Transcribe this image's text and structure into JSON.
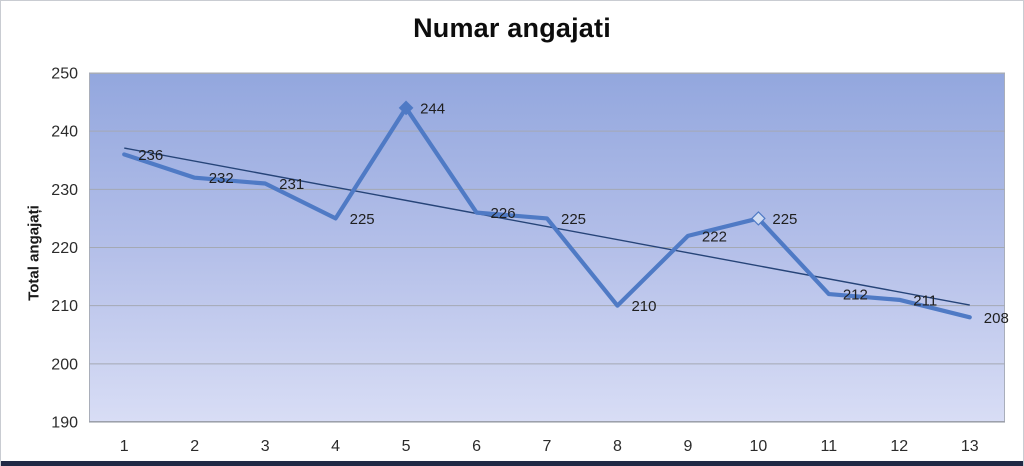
{
  "chart_data": {
    "type": "line",
    "title": "Numar angajati",
    "ylabel": "Total angajați",
    "xlabel": "",
    "categories": [
      1,
      2,
      3,
      4,
      5,
      6,
      7,
      8,
      9,
      10,
      11,
      12,
      13
    ],
    "series": [
      {
        "name": "Total angajati",
        "values": [
          236,
          232,
          231,
          225,
          244,
          226,
          225,
          210,
          222,
          225,
          212,
          211,
          208
        ],
        "color": "#4f7ac5",
        "line_width": 4.2,
        "markers": [
          {
            "point": 5,
            "style": "solid"
          },
          {
            "point": 10,
            "style": "open"
          }
        ],
        "data_labels": true
      }
    ],
    "trendline": {
      "type": "linear",
      "y_start": 237.1,
      "y_end": 210.1,
      "color": "#264478",
      "line_width": 1.4
    },
    "ylim": [
      190,
      250
    ],
    "yticks": [
      250,
      240,
      230,
      220,
      210,
      200,
      190
    ],
    "grid": true,
    "legend": "none"
  },
  "colors": {
    "plot_gradient_top": "#93a7de",
    "plot_gradient_mid": "#b5c0e9",
    "plot_gradient_bottom": "#d8ddf5",
    "gridline": "#a4a9b4",
    "axis_line": "#8e939c",
    "tick_text": "#2b2b2b",
    "data_label_text": "#1f1f1f",
    "marker_open_fill": "#cfdbf2",
    "bottom_bar": "#202945",
    "title_text": "#0d0d0d"
  }
}
